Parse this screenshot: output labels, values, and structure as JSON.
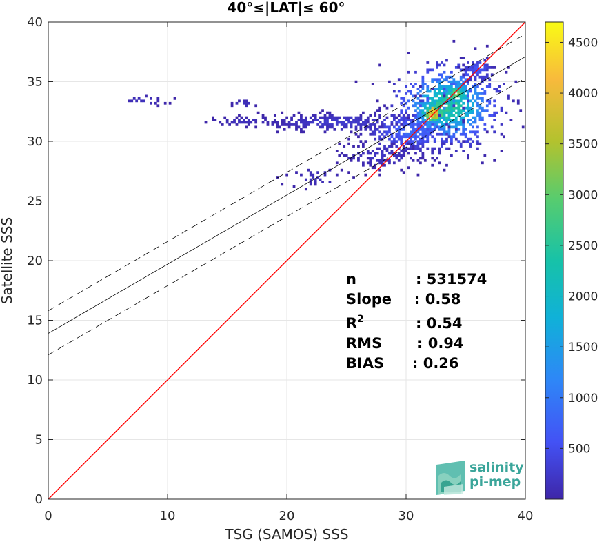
{
  "chart_data": {
    "type": "heatmap",
    "title": "40°≤|LAT|≤ 60°",
    "xlabel": "TSG (SAMOS) SSS",
    "ylabel": "Satellite SSS",
    "xlim": [
      0,
      40
    ],
    "ylim": [
      0,
      40
    ],
    "xticks": [
      "0",
      "10",
      "20",
      "30",
      "40"
    ],
    "yticks": [
      "0",
      "5",
      "10",
      "15",
      "20",
      "25",
      "30",
      "35",
      "40"
    ],
    "grid": true,
    "colorbar": {
      "range": [
        0,
        4700
      ],
      "ticks": [
        "500",
        "1000",
        "1500",
        "2000",
        "2500",
        "3000",
        "3500",
        "4000",
        "4500"
      ],
      "colormap": [
        "#3e26a8",
        "#4352f5",
        "#2e87f7",
        "#10b1d8",
        "#17c2a8",
        "#58cc6e",
        "#b3c22e",
        "#f8ba3c",
        "#f9fb15"
      ]
    },
    "lines": {
      "identity": {
        "x": [
          0,
          40
        ],
        "y": [
          0,
          40
        ],
        "color": "#ff0000"
      },
      "regression": {
        "intercept": 13.9,
        "slope": 0.58,
        "color": "#000000"
      },
      "regression_upper": {
        "intercept": 15.8,
        "slope": 0.58,
        "style": "dashed"
      },
      "regression_lower": {
        "intercept": 12.1,
        "slope": 0.58,
        "style": "dashed"
      }
    },
    "density_clusters": [
      {
        "cx": 33.5,
        "cy": 33.0,
        "sx": 2.2,
        "sy": 1.7,
        "peak": 0.6,
        "n": 700
      },
      {
        "cx": 32.3,
        "cy": 32.4,
        "sx": 0.7,
        "sy": 0.6,
        "peak": 1.0,
        "n": 160
      },
      {
        "cx": 34.2,
        "cy": 34.0,
        "sx": 0.6,
        "sy": 0.5,
        "peak": 0.75,
        "n": 90
      },
      {
        "cx": 30.5,
        "cy": 30.8,
        "sx": 2.0,
        "sy": 0.9,
        "peak": 0.2,
        "n": 320
      },
      {
        "cx": 24.5,
        "cy": 31.6,
        "sx": 3.3,
        "sy": 0.4,
        "peak": 0.07,
        "n": 260
      },
      {
        "cx": 28.0,
        "cy": 28.8,
        "sx": 1.8,
        "sy": 0.6,
        "peak": 0.05,
        "n": 120
      },
      {
        "cx": 16.5,
        "cy": 31.7,
        "sx": 1.5,
        "sy": 0.2,
        "peak": 0.04,
        "n": 50
      },
      {
        "cx": 8.0,
        "cy": 33.4,
        "sx": 1.0,
        "sy": 0.25,
        "peak": 0.04,
        "n": 20
      },
      {
        "cx": 16.5,
        "cy": 33.2,
        "sx": 0.6,
        "sy": 0.15,
        "peak": 0.04,
        "n": 14
      },
      {
        "cx": 36.0,
        "cy": 36.0,
        "sx": 0.7,
        "sy": 0.6,
        "peak": 0.15,
        "n": 60
      },
      {
        "cx": 22.5,
        "cy": 27.0,
        "sx": 1.5,
        "sy": 0.5,
        "peak": 0.04,
        "n": 30
      }
    ]
  },
  "stats": {
    "n_label": "n",
    "n_value": ": 531574",
    "slope_label": "Slope",
    "slope_value": ": 0.58",
    "r2_label": "R",
    "r2_sup": "2",
    "r2_value": ": 0.54",
    "rms_label": "RMS",
    "rms_value": ": 0.94",
    "bias_label": "BIAS",
    "bias_value": ": 0.26"
  },
  "logo": {
    "line1": "salinity",
    "line2": "pi-mep"
  }
}
